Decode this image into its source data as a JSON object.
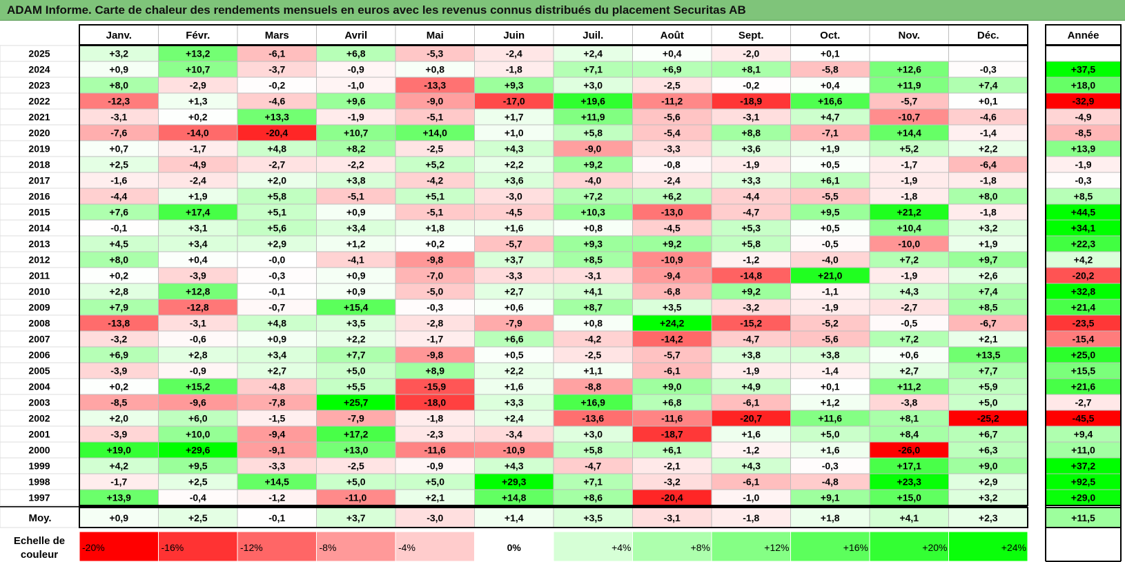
{
  "title": "ADAM Informe. Carte de chaleur des rendements mensuels en euros avec les revenus connus distribués du placement Securitas AB",
  "chart_data": {
    "type": "heatmap",
    "title": "ADAM Informe. Carte de chaleur des rendements mensuels en euros avec les revenus connus distribués du placement Securitas AB",
    "months": [
      "Janv.",
      "Févr.",
      "Mars",
      "Avril",
      "Mai",
      "Juin",
      "Juil.",
      "Août",
      "Sept.",
      "Oct.",
      "Nov.",
      "Déc."
    ],
    "year_header": "Année",
    "rows": [
      {
        "year": "2025",
        "values": [
          "+3,2",
          "+13,2",
          "-6,1",
          "+6,8",
          "-5,3",
          "-2,4",
          "+2,4",
          "+0,4",
          "-2,0",
          "+0,1",
          "",
          ""
        ],
        "annual": ""
      },
      {
        "year": "2024",
        "values": [
          "+0,9",
          "+10,7",
          "-3,7",
          "-0,9",
          "+0,8",
          "-1,8",
          "+7,1",
          "+6,9",
          "+8,1",
          "-5,8",
          "+12,6",
          "-0,3"
        ],
        "annual": "+37,5"
      },
      {
        "year": "2023",
        "values": [
          "+8,0",
          "-2,9",
          "-0,2",
          "-1,0",
          "-13,3",
          "+9,3",
          "+3,0",
          "-2,5",
          "-0,2",
          "+0,4",
          "+11,9",
          "+7,4"
        ],
        "annual": "+18,0"
      },
      {
        "year": "2022",
        "values": [
          "-12,3",
          "+1,3",
          "-4,6",
          "+9,6",
          "-9,0",
          "-17,0",
          "+19,6",
          "-11,2",
          "-18,9",
          "+16,6",
          "-5,7",
          "+0,1"
        ],
        "annual": "-32,9"
      },
      {
        "year": "2021",
        "values": [
          "-3,1",
          "+0,2",
          "+13,3",
          "-1,9",
          "-5,1",
          "+1,7",
          "+11,9",
          "-5,6",
          "-3,1",
          "+4,7",
          "-10,7",
          "-4,6"
        ],
        "annual": "-4,9"
      },
      {
        "year": "2020",
        "values": [
          "-7,6",
          "-14,0",
          "-20,4",
          "+10,7",
          "+14,0",
          "+1,0",
          "+5,8",
          "-5,4",
          "+8,8",
          "-7,1",
          "+14,4",
          "-1,4"
        ],
        "annual": "-8,5"
      },
      {
        "year": "2019",
        "values": [
          "+0,7",
          "-1,7",
          "+4,8",
          "+8,2",
          "-2,5",
          "+4,3",
          "-9,0",
          "-3,3",
          "+3,6",
          "+1,9",
          "+5,2",
          "+2,2"
        ],
        "annual": "+13,9"
      },
      {
        "year": "2018",
        "values": [
          "+2,5",
          "-4,9",
          "-2,7",
          "-2,2",
          "+5,2",
          "+2,2",
          "+9,2",
          "-0,8",
          "-1,9",
          "+0,5",
          "-1,7",
          "-6,4"
        ],
        "annual": "-1,9"
      },
      {
        "year": "2017",
        "values": [
          "-1,6",
          "-2,4",
          "+2,0",
          "+3,8",
          "-4,2",
          "+3,6",
          "-4,0",
          "-2,4",
          "+3,3",
          "+6,1",
          "-1,9",
          "-1,8"
        ],
        "annual": "-0,3"
      },
      {
        "year": "2016",
        "values": [
          "-4,4",
          "+1,9",
          "+5,8",
          "-5,1",
          "+5,1",
          "-3,0",
          "+7,2",
          "+6,2",
          "-4,4",
          "-5,5",
          "-1,8",
          "+8,0"
        ],
        "annual": "+8,5"
      },
      {
        "year": "2015",
        "values": [
          "+7,6",
          "+17,4",
          "+5,1",
          "+0,9",
          "-5,1",
          "-4,5",
          "+10,3",
          "-13,0",
          "-4,7",
          "+9,5",
          "+21,2",
          "-1,8"
        ],
        "annual": "+44,5"
      },
      {
        "year": "2014",
        "values": [
          "-0,1",
          "+3,1",
          "+5,6",
          "+3,4",
          "+1,8",
          "+1,6",
          "+0,8",
          "-4,5",
          "+5,3",
          "+0,5",
          "+10,4",
          "+3,2"
        ],
        "annual": "+34,1"
      },
      {
        "year": "2013",
        "values": [
          "+4,5",
          "+3,4",
          "+2,9",
          "+1,2",
          "+0,2",
          "-5,7",
          "+9,3",
          "+9,2",
          "+5,8",
          "-0,5",
          "-10,0",
          "+1,9"
        ],
        "annual": "+22,3"
      },
      {
        "year": "2012",
        "values": [
          "+8,0",
          "+0,4",
          "-0,0",
          "-4,1",
          "-9,8",
          "+3,7",
          "+8,5",
          "-10,9",
          "-1,2",
          "-4,0",
          "+7,2",
          "+9,7"
        ],
        "annual": "+4,2"
      },
      {
        "year": "2011",
        "values": [
          "+0,2",
          "-3,9",
          "-0,3",
          "+0,9",
          "-7,0",
          "-3,3",
          "-3,1",
          "-9,4",
          "-14,8",
          "+21,0",
          "-1,9",
          "+2,6"
        ],
        "annual": "-20,2"
      },
      {
        "year": "2010",
        "values": [
          "+2,8",
          "+12,8",
          "-0,1",
          "+0,9",
          "-5,0",
          "+2,7",
          "+4,1",
          "-6,8",
          "+9,2",
          "-1,1",
          "+4,3",
          "+7,4"
        ],
        "annual": "+32,8"
      },
      {
        "year": "2009",
        "values": [
          "+7,9",
          "-12,8",
          "-0,7",
          "+15,4",
          "-0,3",
          "+0,6",
          "+8,7",
          "+3,5",
          "-3,2",
          "-1,9",
          "-2,7",
          "+8,5"
        ],
        "annual": "+21,4"
      },
      {
        "year": "2008",
        "values": [
          "-13,8",
          "-3,1",
          "+4,8",
          "+3,5",
          "-2,8",
          "-7,9",
          "+0,8",
          "+24,2",
          "-15,2",
          "-5,2",
          "-0,5",
          "-6,7"
        ],
        "annual": "-23,5"
      },
      {
        "year": "2007",
        "values": [
          "-3,2",
          "-0,6",
          "+0,9",
          "+2,2",
          "-1,7",
          "+6,6",
          "-4,2",
          "-14,2",
          "-4,7",
          "-5,6",
          "+7,2",
          "+2,1"
        ],
        "annual": "-15,4"
      },
      {
        "year": "2006",
        "values": [
          "+6,9",
          "+2,8",
          "+3,4",
          "+7,7",
          "-9,8",
          "+0,5",
          "-2,5",
          "-5,7",
          "+3,8",
          "+3,8",
          "+0,6",
          "+13,5"
        ],
        "annual": "+25,0"
      },
      {
        "year": "2005",
        "values": [
          "-3,9",
          "-0,9",
          "+2,7",
          "+5,0",
          "+8,9",
          "+2,2",
          "+1,1",
          "-6,1",
          "-1,9",
          "-1,4",
          "+2,7",
          "+7,7"
        ],
        "annual": "+15,5"
      },
      {
        "year": "2004",
        "values": [
          "+0,2",
          "+15,2",
          "-4,8",
          "+5,5",
          "-15,9",
          "+1,6",
          "-8,8",
          "+9,0",
          "+4,9",
          "+0,1",
          "+11,2",
          "+5,9"
        ],
        "annual": "+21,6"
      },
      {
        "year": "2003",
        "values": [
          "-8,5",
          "-9,6",
          "-7,8",
          "+25,7",
          "-18,0",
          "+3,3",
          "+16,9",
          "+6,8",
          "-6,1",
          "+1,2",
          "-3,8",
          "+5,0"
        ],
        "annual": "-2,7"
      },
      {
        "year": "2002",
        "values": [
          "+2,0",
          "+6,0",
          "-1,5",
          "-7,9",
          "-1,8",
          "+2,4",
          "-13,6",
          "-11,6",
          "-20,7",
          "+11,6",
          "+8,1",
          "-25,2"
        ],
        "annual": "-45,5"
      },
      {
        "year": "2001",
        "values": [
          "-3,9",
          "+10,0",
          "-9,4",
          "+17,2",
          "-2,3",
          "-3,4",
          "+3,0",
          "-18,7",
          "+1,6",
          "+5,0",
          "+8,4",
          "+6,7"
        ],
        "annual": "+9,4"
      },
      {
        "year": "2000",
        "values": [
          "+19,0",
          "+29,6",
          "-9,1",
          "+13,0",
          "-11,6",
          "-10,9",
          "+5,8",
          "+6,1",
          "-1,2",
          "+1,6",
          "-26,0",
          "+6,3"
        ],
        "annual": "+11,0"
      },
      {
        "year": "1999",
        "values": [
          "+4,2",
          "+9,5",
          "-3,3",
          "-2,5",
          "-0,9",
          "+4,3",
          "-4,7",
          "-2,1",
          "+4,3",
          "-0,3",
          "+17,1",
          "+9,0"
        ],
        "annual": "+37,2"
      },
      {
        "year": "1998",
        "values": [
          "-1,7",
          "+2,5",
          "+14,5",
          "+5,0",
          "+5,0",
          "+29,3",
          "+7,1",
          "-3,2",
          "-6,1",
          "-4,8",
          "+23,3",
          "+2,9"
        ],
        "annual": "+92,5"
      },
      {
        "year": "1997",
        "values": [
          "+13,9",
          "-0,4",
          "-1,2",
          "-11,0",
          "+2,1",
          "+14,8",
          "+8,6",
          "-20,4",
          "-1,0",
          "+9,1",
          "+15,0",
          "+3,2"
        ],
        "annual": "+29,0"
      }
    ],
    "average": {
      "label": "Moy.",
      "values": [
        "+0,9",
        "+2,5",
        "-0,1",
        "+3,7",
        "-3,0",
        "+1,4",
        "+3,5",
        "-3,1",
        "-1,8",
        "+1,8",
        "+4,1",
        "+2,3"
      ],
      "annual": "+11,5"
    },
    "scale": {
      "label_line1": "Echelle de",
      "label_line2": "couleur",
      "items": [
        {
          "label": "-20%",
          "color": "#ff0000"
        },
        {
          "label": "-16%",
          "color": "#ff3333"
        },
        {
          "label": "-12%",
          "color": "#ff6666"
        },
        {
          "label": "-8%",
          "color": "#ff9999"
        },
        {
          "label": "-4%",
          "color": "#ffcccc"
        },
        {
          "label": "0%",
          "color": "#ffffff"
        },
        {
          "label": "+4%",
          "color": "#d6ffd6"
        },
        {
          "label": "+8%",
          "color": "#adffad"
        },
        {
          "label": "+12%",
          "color": "#85ff85"
        },
        {
          "label": "+16%",
          "color": "#5cff5c"
        },
        {
          "label": "+20%",
          "color": "#33ff33"
        },
        {
          "label": "+24%",
          "color": "#0aff0a"
        }
      ]
    },
    "colors": {
      "negative_max": "#ff0000",
      "zero": "#ffffff",
      "positive_max": "#00ff00",
      "title_bar": "#7fc47a"
    }
  }
}
